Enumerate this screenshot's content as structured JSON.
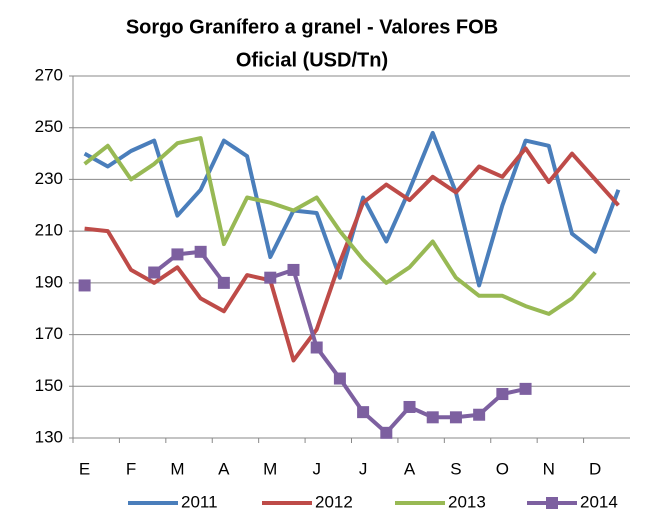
{
  "chart_data": {
    "type": "line",
    "title": [
      "Sorgo Granífero a granel - Valores FOB",
      "Oficial (USD/Tn)"
    ],
    "categories": [
      "E",
      null,
      "F",
      null,
      "M",
      null,
      "A",
      null,
      "M",
      null,
      "J",
      null,
      "J",
      null,
      "A",
      null,
      "S",
      null,
      "O",
      null,
      "N",
      null,
      "D",
      null
    ],
    "series": [
      {
        "name": "2011",
        "color": "#4a7ebb",
        "values": [
          240,
          235,
          241,
          245,
          216,
          226,
          245,
          239,
          200,
          218,
          217,
          192,
          223,
          206,
          226,
          248,
          225,
          189,
          220,
          245,
          243,
          209,
          202,
          226
        ]
      },
      {
        "name": "2012",
        "color": "#be4b48",
        "values": [
          211,
          210,
          195,
          190,
          196,
          184,
          179,
          193,
          191,
          160,
          172,
          198,
          221,
          228,
          222,
          231,
          225,
          235,
          231,
          242,
          229,
          240,
          230,
          220
        ]
      },
      {
        "name": "2013",
        "color": "#98b954",
        "values": [
          236,
          243,
          230,
          236,
          244,
          246,
          205,
          223,
          221,
          218,
          223,
          210,
          199,
          190,
          196,
          206,
          192,
          185,
          185,
          181,
          178,
          184,
          194,
          null
        ]
      },
      {
        "name": "2014",
        "color": "#7d60a0",
        "marker": "square",
        "values": [
          189,
          null,
          null,
          194,
          201,
          202,
          190,
          null,
          192,
          195,
          165,
          153,
          140,
          132,
          142,
          138,
          138,
          139,
          147,
          149,
          null,
          null,
          null,
          null
        ]
      }
    ],
    "ylim": [
      130,
      270
    ],
    "yticks": [
      130,
      150,
      170,
      190,
      210,
      230,
      250,
      270
    ],
    "grid": true,
    "legend": "bottom"
  }
}
